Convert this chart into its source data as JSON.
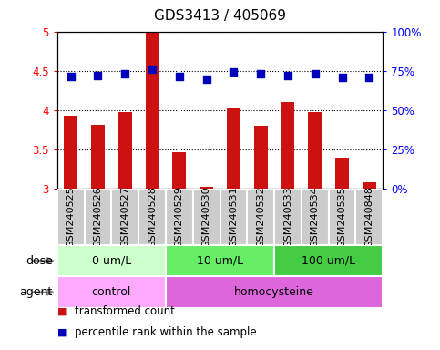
{
  "title": "GDS3413 / 405069",
  "samples": [
    "GSM240525",
    "GSM240526",
    "GSM240527",
    "GSM240528",
    "GSM240529",
    "GSM240530",
    "GSM240531",
    "GSM240532",
    "GSM240533",
    "GSM240534",
    "GSM240535",
    "GSM240848"
  ],
  "red_values": [
    3.93,
    3.82,
    3.98,
    5.0,
    3.47,
    3.03,
    4.04,
    3.8,
    4.1,
    3.98,
    3.4,
    3.09
  ],
  "blue_values": [
    4.43,
    4.44,
    4.46,
    4.52,
    4.43,
    4.39,
    4.49,
    4.46,
    4.44,
    4.46,
    4.42,
    4.42
  ],
  "ylim_left": [
    3.0,
    5.0
  ],
  "yticks_left": [
    3.0,
    3.5,
    4.0,
    4.5,
    5.0
  ],
  "ytick_left_labels": [
    "3",
    "3.5",
    "4",
    "4.5",
    "5"
  ],
  "yticks_right": [
    0,
    25,
    50,
    75,
    100
  ],
  "ytick_right_labels": [
    "0%",
    "25%",
    "50%",
    "75%",
    "100%"
  ],
  "dose_groups": [
    {
      "label": "0 um/L",
      "start": 0,
      "end": 4,
      "color": "#ccffcc"
    },
    {
      "label": "10 um/L",
      "start": 4,
      "end": 8,
      "color": "#66ee66"
    },
    {
      "label": "100 um/L",
      "start": 8,
      "end": 12,
      "color": "#44cc44"
    }
  ],
  "agent_groups": [
    {
      "label": "control",
      "start": 0,
      "end": 4,
      "color": "#ffaaff"
    },
    {
      "label": "homocysteine",
      "start": 4,
      "end": 12,
      "color": "#dd66dd"
    }
  ],
  "legend_red_label": "transformed count",
  "legend_blue_label": "percentile rank within the sample",
  "bar_color": "#cc1111",
  "dot_color": "#0000bb",
  "bar_width": 0.5,
  "dot_size": 28,
  "grid_color": "#000000",
  "grid_linewidth": 0.8,
  "sample_area_color": "#cccccc",
  "label_fontsize": 9,
  "tick_fontsize": 8.5,
  "title_fontsize": 11
}
